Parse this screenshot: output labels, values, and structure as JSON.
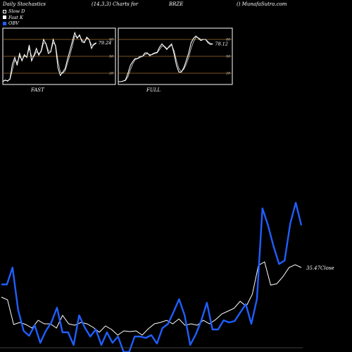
{
  "header": {
    "title": "Daily Stochastics",
    "params": "(14,3,3) Charts for",
    "symbol": "BRZE",
    "site": "() MunafaSutra.com"
  },
  "legend": [
    {
      "label": "Slow  D",
      "color": "#ffffff"
    },
    {
      "label": "Fast K",
      "color": "#ffffff"
    },
    {
      "label": "OBV",
      "color": "#1f5fff"
    }
  ],
  "colors": {
    "stoch_line": "#ffffff",
    "level_line": "#a0702a",
    "obv": "#1f5fff",
    "close": "#ffffff",
    "panel_border": "#ffffff"
  },
  "chart_data": [
    {
      "type": "line",
      "name": "fast-stochastics",
      "caption": "FAST",
      "ylim": [
        0,
        100
      ],
      "levels": [
        20,
        50,
        80
      ],
      "level_labels": [
        "20",
        "50",
        "80"
      ],
      "last_value_label": "79.24",
      "series": [
        {
          "values": [
            5,
            8,
            6,
            10,
            36,
            48,
            34,
            55,
            42,
            53,
            48,
            70,
            42,
            52,
            64,
            52,
            60,
            80,
            72,
            55,
            58,
            80,
            68,
            30,
            16,
            22,
            28,
            45,
            60,
            76,
            92,
            82,
            88,
            76,
            74,
            84,
            80,
            64,
            72,
            74
          ]
        },
        {
          "values": [
            6,
            7,
            7,
            9,
            26,
            43,
            39,
            50,
            44,
            50,
            49,
            64,
            50,
            50,
            58,
            55,
            58,
            74,
            73,
            60,
            58,
            74,
            70,
            42,
            22,
            20,
            24,
            38,
            52,
            68,
            86,
            84,
            86,
            79,
            76,
            82,
            80,
            70,
            70,
            73
          ]
        }
      ]
    },
    {
      "type": "line",
      "name": "full-stochastics",
      "caption": "FULL",
      "ylim": [
        0,
        100
      ],
      "levels": [
        20,
        50,
        80
      ],
      "level_labels": [
        "20",
        "50",
        "80"
      ],
      "last_value_label": "78.12",
      "series": [
        {
          "values": [
            5,
            5,
            6,
            8,
            20,
            34,
            41,
            46,
            46,
            50,
            50,
            56,
            56,
            51,
            54,
            56,
            57,
            66,
            72,
            67,
            62,
            68,
            72,
            54,
            34,
            22,
            22,
            30,
            42,
            56,
            74,
            82,
            86,
            82,
            78,
            80,
            80,
            74,
            71,
            72
          ]
        },
        {
          "values": [
            5,
            5,
            6,
            7,
            14,
            26,
            37,
            44,
            46,
            48,
            50,
            53,
            55,
            53,
            53,
            55,
            56,
            62,
            68,
            68,
            64,
            66,
            70,
            60,
            42,
            28,
            23,
            27,
            36,
            48,
            64,
            76,
            84,
            83,
            80,
            80,
            80,
            76,
            73,
            72
          ]
        }
      ]
    },
    {
      "type": "line",
      "name": "obv-and-price",
      "close_label": "35.47",
      "close_suffix": "Close",
      "series": [
        {
          "name": "OBV",
          "values": [
            404,
            404,
            380,
            440,
            470,
            477,
            462,
            487,
            470,
            458,
            437,
            472,
            472,
            490,
            448,
            465,
            478,
            468,
            490,
            472,
            487,
            478,
            506,
            520,
            478,
            478,
            480,
            476,
            488,
            466,
            460,
            443,
            425,
            448,
            490,
            475,
            455,
            430,
            468,
            468,
            455,
            458,
            456,
            444,
            432,
            460,
            425,
            296,
            320,
            350,
            375,
            370,
            318,
            288,
            320
          ]
        },
        {
          "name": "Close",
          "values": [
            422,
            426,
            461,
            458,
            461,
            466,
            455,
            460,
            460,
            466,
            448,
            460,
            462,
            458,
            460,
            465,
            472,
            463,
            468,
            476,
            470,
            471,
            470,
            476,
            467,
            460,
            458,
            455,
            460,
            453,
            462,
            460,
            462,
            455,
            460,
            454,
            446,
            442,
            438,
            428,
            435,
            418,
            377,
            372,
            405,
            403,
            393,
            380,
            376,
            380
          ]
        }
      ]
    }
  ]
}
